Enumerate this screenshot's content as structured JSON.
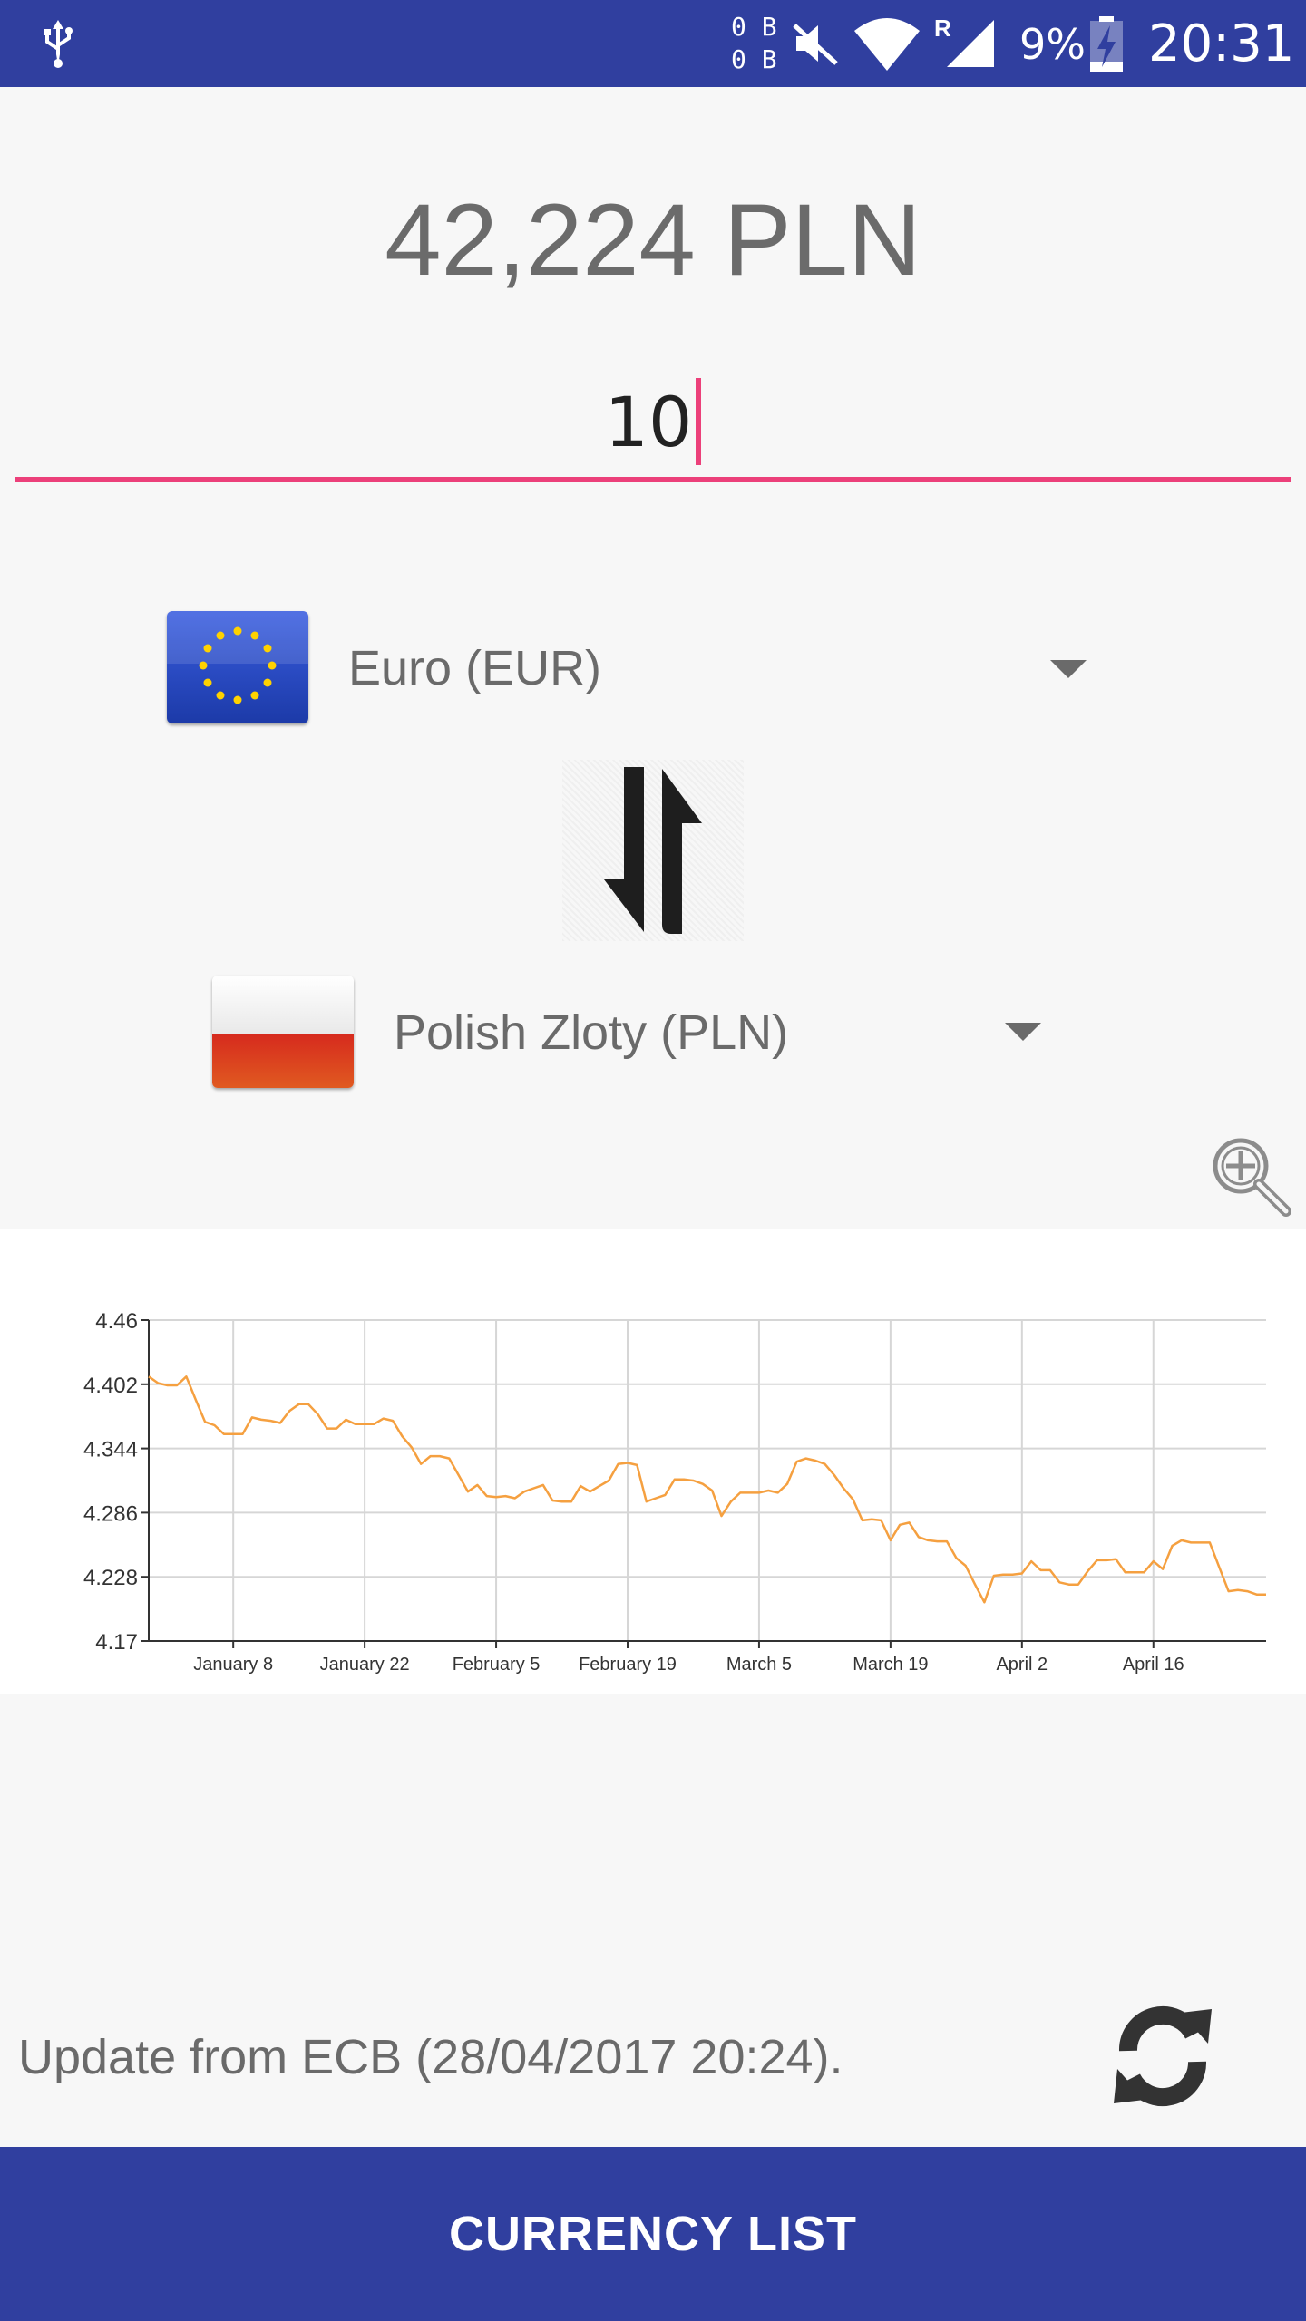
{
  "status_bar": {
    "net_up": "0 B",
    "net_down": "0 B",
    "battery": "9%",
    "time": "20:31",
    "icons": [
      "usb-icon",
      "mute-icon",
      "wifi-icon",
      "cellular-roaming-icon",
      "battery-charging-icon"
    ]
  },
  "converter": {
    "result": "42,224 PLN",
    "amount": "10",
    "from_currency": "Euro (EUR)",
    "to_currency": "Polish Zloty (PLN)",
    "from_flag": "eu-flag",
    "to_flag": "poland-flag"
  },
  "colors": {
    "primary": "#303f9f",
    "accent": "#ec407a",
    "series": "#f5a040"
  },
  "chart_data": {
    "type": "line",
    "y_ticks": [
      "4.46",
      "4.402",
      "4.344",
      "4.286",
      "4.228",
      "4.17"
    ],
    "x_ticks": [
      {
        "label": "January 8",
        "index": 9
      },
      {
        "label": "January 22",
        "index": 23
      },
      {
        "label": "February 5",
        "index": 37
      },
      {
        "label": "February 19",
        "index": 51
      },
      {
        "label": "March 5",
        "index": 65
      },
      {
        "label": "March 19",
        "index": 79
      },
      {
        "label": "April 2",
        "index": 93
      },
      {
        "label": "April 16",
        "index": 107
      }
    ],
    "ylim": [
      4.17,
      4.46
    ],
    "grid": true,
    "series": [
      {
        "values": [
          4.409,
          4.403,
          4.401,
          4.401,
          4.409,
          4.388,
          4.368,
          4.365,
          4.357,
          4.357,
          4.357,
          4.372,
          4.37,
          4.369,
          4.367,
          4.378,
          4.384,
          4.384,
          4.375,
          4.362,
          4.362,
          4.37,
          4.366,
          4.366,
          4.366,
          4.371,
          4.369,
          4.355,
          4.345,
          4.33,
          4.337,
          4.337,
          4.335,
          4.32,
          4.305,
          4.311,
          4.301,
          4.3,
          4.301,
          4.299,
          4.305,
          4.308,
          4.311,
          4.297,
          4.296,
          4.296,
          4.31,
          4.305,
          4.31,
          4.315,
          4.33,
          4.331,
          4.329,
          4.296,
          4.299,
          4.302,
          4.316,
          4.316,
          4.315,
          4.312,
          4.306,
          4.283,
          4.296,
          4.304,
          4.304,
          4.304,
          4.306,
          4.304,
          4.312,
          4.332,
          4.335,
          4.333,
          4.33,
          4.32,
          4.308,
          4.298,
          4.279,
          4.28,
          4.279,
          4.261,
          4.275,
          4.277,
          4.264,
          4.261,
          4.26,
          4.26,
          4.245,
          4.238,
          4.221,
          4.205,
          4.229,
          4.23,
          4.23,
          4.231,
          4.242,
          4.234,
          4.234,
          4.223,
          4.221,
          4.221,
          4.233,
          4.243,
          4.243,
          4.244,
          4.232,
          4.232,
          4.232,
          4.242,
          4.235,
          4.256,
          4.261,
          4.259,
          4.259,
          4.259,
          4.237,
          4.215,
          4.216,
          4.215,
          4.212,
          4.212
        ]
      }
    ]
  },
  "footer": {
    "update_text": "Update from ECB (28/04/2017 20:24).",
    "currency_list_label": "CURRENCY LIST"
  }
}
